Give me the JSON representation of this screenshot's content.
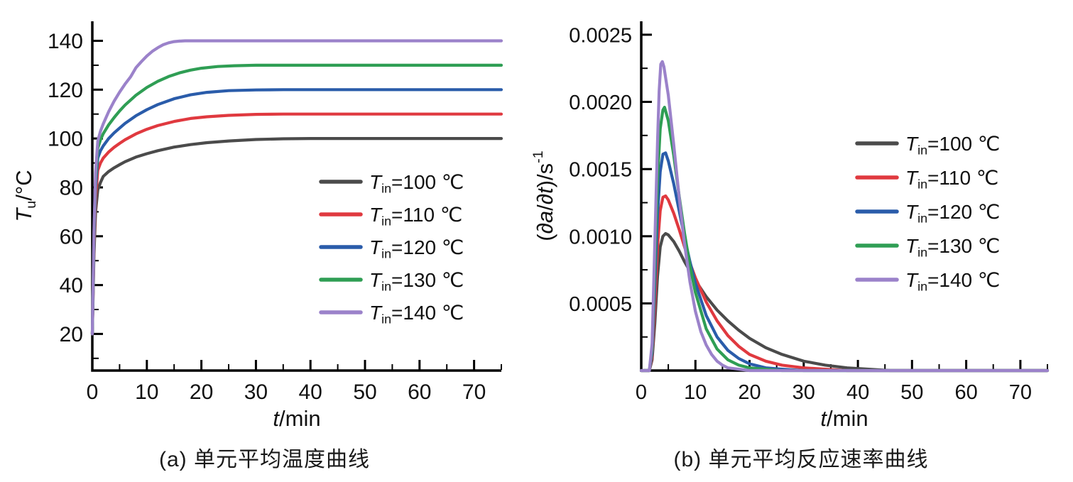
{
  "page": {
    "background": "#ffffff"
  },
  "palette": {
    "t100": "#4b4b4b",
    "t110": "#e0393f",
    "t120": "#2a5caa",
    "t130": "#2f9e54",
    "t140": "#9b82ca",
    "axis": "#000000",
    "text": "#1a1a1a"
  },
  "chart_data": [
    {
      "id": "a",
      "type": "line",
      "caption": "(a) 单元平均温度曲线",
      "xlabel_plain": "t/min",
      "ylabel_plain": "Tu/°C",
      "xlabel_parts": [
        {
          "t": "t",
          "i": true
        },
        {
          "t": "/min"
        }
      ],
      "ylabel_parts": [
        {
          "t": "T",
          "i": true
        },
        {
          "t": "u",
          "sub": true
        },
        {
          "t": "/°C"
        }
      ],
      "xlim": [
        0,
        75
      ],
      "ylim": [
        5,
        148
      ],
      "xticks": [
        0,
        10,
        20,
        30,
        40,
        50,
        60,
        70
      ],
      "xtick_labels": [
        "0",
        "10",
        "20",
        "30",
        "40",
        "50",
        "60",
        "70"
      ],
      "xminor": [
        5,
        15,
        25,
        35,
        45,
        55,
        65,
        75
      ],
      "yticks": [
        20,
        40,
        60,
        80,
        100,
        120,
        140
      ],
      "ytick_labels": [
        "20",
        "40",
        "60",
        "80",
        "100",
        "120",
        "140"
      ],
      "yminor": [
        10,
        30,
        50,
        70,
        90,
        110,
        130
      ],
      "legend": [
        {
          "label": "Tin=100 ℃",
          "color": "#4b4b4b",
          "parts": [
            {
              "t": "T",
              "i": true
            },
            {
              "t": "in",
              "sub": true
            },
            {
              "t": "=100 ℃"
            }
          ]
        },
        {
          "label": "Tin=110 ℃",
          "color": "#e0393f",
          "parts": [
            {
              "t": "T",
              "i": true
            },
            {
              "t": "in",
              "sub": true
            },
            {
              "t": "=110 ℃"
            }
          ]
        },
        {
          "label": "Tin=120 ℃",
          "color": "#2a5caa",
          "parts": [
            {
              "t": "T",
              "i": true
            },
            {
              "t": "in",
              "sub": true
            },
            {
              "t": "=120 ℃"
            }
          ]
        },
        {
          "label": "Tin=130 ℃",
          "color": "#2f9e54",
          "parts": [
            {
              "t": "T",
              "i": true
            },
            {
              "t": "in",
              "sub": true
            },
            {
              "t": "=130 ℃"
            }
          ]
        },
        {
          "label": "Tin=140 ℃",
          "color": "#9b82ca",
          "parts": [
            {
              "t": "T",
              "i": true
            },
            {
              "t": "in",
              "sub": true
            },
            {
              "t": "=140 ℃"
            }
          ]
        }
      ],
      "series": [
        {
          "name": "Tin=100 ℃",
          "color": "#4b4b4b",
          "x": [
            0,
            0.3,
            0.6,
            1,
            1.5,
            2,
            3,
            4,
            5,
            6,
            8,
            10,
            12,
            15,
            18,
            21,
            25,
            30,
            35,
            40,
            50,
            60,
            75
          ],
          "y": [
            20,
            52,
            70,
            79,
            82,
            84.5,
            86.5,
            88,
            89.3,
            90.5,
            92.4,
            93.8,
            95,
            96.5,
            97.5,
            98.3,
            99,
            99.6,
            99.9,
            100,
            100,
            100,
            100
          ]
        },
        {
          "name": "Tin=110 ℃",
          "color": "#e0393f",
          "x": [
            0,
            0.3,
            0.6,
            1,
            1.5,
            2,
            3,
            4,
            5,
            6,
            8,
            10,
            12,
            15,
            18,
            21,
            25,
            30,
            35,
            40,
            50,
            60,
            75
          ],
          "y": [
            20,
            55,
            75,
            87,
            90,
            92,
            94.5,
            96.4,
            98,
            99.5,
            101.9,
            103.8,
            105.3,
            107,
            108.2,
            108.9,
            109.5,
            109.9,
            110,
            110,
            110,
            110,
            110
          ]
        },
        {
          "name": "Tin=120 ℃",
          "color": "#2a5caa",
          "x": [
            0,
            0.3,
            0.6,
            1,
            1.5,
            2,
            3,
            4,
            5,
            6,
            8,
            10,
            12,
            15,
            18,
            21,
            25,
            30,
            35,
            40,
            50,
            60,
            75
          ],
          "y": [
            20,
            58,
            80,
            92,
            95,
            97,
            100,
            102.3,
            104.3,
            106.2,
            109.3,
            111.8,
            113.9,
            116.3,
            117.9,
            118.9,
            119.6,
            119.9,
            120,
            120,
            120,
            120,
            120
          ]
        },
        {
          "name": "Tin=130 ℃",
          "color": "#2f9e54",
          "x": [
            0,
            0.3,
            0.6,
            1,
            1.5,
            2,
            3,
            4,
            5,
            6,
            8,
            10,
            12,
            14,
            16,
            18,
            20,
            23,
            26,
            30,
            40,
            50,
            60,
            75
          ],
          "y": [
            20,
            60,
            83,
            96,
            99.5,
            102,
            105.6,
            108.6,
            111.3,
            113.7,
            117.7,
            120.9,
            123.4,
            125.4,
            126.9,
            128,
            128.8,
            129.5,
            129.8,
            130,
            130,
            130,
            130,
            130
          ]
        },
        {
          "name": "Tin=140 ℃",
          "color": "#9b82ca",
          "x": [
            0,
            0.3,
            0.6,
            1,
            1.5,
            2,
            3,
            4,
            5,
            6,
            7,
            8,
            9,
            10,
            11,
            12,
            13,
            14,
            15,
            16,
            17,
            20,
            30,
            40,
            50,
            60,
            75
          ],
          "y": [
            20,
            62,
            86,
            99,
            103,
            106,
            111,
            115.3,
            119,
            122.3,
            125.2,
            129,
            131.5,
            133.8,
            135.7,
            137.2,
            138.4,
            139.2,
            139.7,
            139.9,
            140,
            140,
            140,
            140,
            140,
            140,
            140
          ]
        }
      ]
    },
    {
      "id": "b",
      "type": "line",
      "caption": "(b) 单元平均反应速率曲线",
      "xlabel_plain": "t/min",
      "ylabel_plain": "(∂a/∂t)/s-1",
      "xlabel_parts": [
        {
          "t": "t",
          "i": true
        },
        {
          "t": "/min"
        }
      ],
      "ylabel_parts": [
        {
          "t": "("
        },
        {
          "t": "∂a",
          "i": true
        },
        {
          "t": "/"
        },
        {
          "t": "∂t",
          "i": true
        },
        {
          "t": ")/s"
        },
        {
          "t": "-1",
          "sup": true
        }
      ],
      "xlim": [
        0,
        75
      ],
      "ylim": [
        0,
        0.0026
      ],
      "xticks": [
        0,
        10,
        20,
        30,
        40,
        50,
        60,
        70
      ],
      "xtick_labels": [
        "0",
        "10",
        "20",
        "30",
        "40",
        "50",
        "60",
        "70"
      ],
      "xminor": [
        5,
        15,
        25,
        35,
        45,
        55,
        65,
        75
      ],
      "yticks": [
        0.0005,
        0.001,
        0.0015,
        0.002,
        0.0025
      ],
      "ytick_labels": [
        "0.0005",
        "0.0010",
        "0.0015",
        "0.0020",
        "0.0025"
      ],
      "yminor": [
        0.00025,
        0.00075,
        0.00125,
        0.00175,
        0.00225
      ],
      "legend": [
        {
          "label": "Tin=100 ℃",
          "color": "#4b4b4b",
          "parts": [
            {
              "t": "T",
              "i": true
            },
            {
              "t": "in",
              "sub": true
            },
            {
              "t": "=100 ℃"
            }
          ]
        },
        {
          "label": "Tin=110 ℃",
          "color": "#e0393f",
          "parts": [
            {
              "t": "T",
              "i": true
            },
            {
              "t": "in",
              "sub": true
            },
            {
              "t": "=110 ℃"
            }
          ]
        },
        {
          "label": "Tin=120 ℃",
          "color": "#2a5caa",
          "parts": [
            {
              "t": "T",
              "i": true
            },
            {
              "t": "in",
              "sub": true
            },
            {
              "t": "=120 ℃"
            }
          ]
        },
        {
          "label": "Tin=130 ℃",
          "color": "#2f9e54",
          "parts": [
            {
              "t": "T",
              "i": true
            },
            {
              "t": "in",
              "sub": true
            },
            {
              "t": "=130 ℃"
            }
          ]
        },
        {
          "label": "Tin=140 ℃",
          "color": "#9b82ca",
          "parts": [
            {
              "t": "T",
              "i": true
            },
            {
              "t": "in",
              "sub": true
            },
            {
              "t": "=140 ℃"
            }
          ]
        }
      ],
      "series": [
        {
          "name": "Tin=100 ℃",
          "color": "#4b4b4b",
          "x": [
            0,
            1.5,
            2,
            2.5,
            3,
            3.5,
            4,
            4.5,
            5,
            6,
            7,
            8,
            9,
            10,
            12,
            14,
            16,
            18,
            20,
            23,
            26,
            30,
            34,
            38,
            42,
            46,
            55,
            75
          ],
          "y": [
            0,
            0,
            8e-05,
            0.00035,
            0.0007,
            0.00092,
            0.001,
            0.00102,
            0.00101,
            0.00096,
            0.00089,
            0.00081,
            0.00074,
            0.00067,
            0.00055,
            0.00045,
            0.00037,
            0.0003,
            0.00024,
            0.00017,
            0.00012,
            7e-05,
            4e-05,
            2e-05,
            1e-05,
            0,
            0,
            0
          ]
        },
        {
          "name": "Tin=110 ℃",
          "color": "#e0393f",
          "x": [
            0,
            1.5,
            2,
            2.5,
            3,
            3.5,
            4,
            4.5,
            5,
            6,
            7,
            8,
            9,
            10,
            12,
            14,
            16,
            18,
            20,
            23,
            26,
            30,
            34,
            38,
            75
          ],
          "y": [
            0,
            0,
            0.0001,
            0.00048,
            0.00092,
            0.00119,
            0.00129,
            0.0013,
            0.00127,
            0.00117,
            0.00105,
            0.00092,
            0.0008,
            0.00069,
            0.00051,
            0.00037,
            0.00026,
            0.00018,
            0.00012,
            7e-05,
            4e-05,
            2e-05,
            1e-05,
            0,
            0
          ]
        },
        {
          "name": "Tin=120 ℃",
          "color": "#2a5caa",
          "x": [
            0,
            1.5,
            2,
            2.5,
            3,
            3.5,
            4,
            4.5,
            5,
            6,
            7,
            8,
            9,
            10,
            12,
            14,
            16,
            18,
            20,
            23,
            26,
            30,
            75
          ],
          "y": [
            0,
            0,
            0.00013,
            0.00062,
            0.00116,
            0.00148,
            0.00161,
            0.00162,
            0.00156,
            0.00139,
            0.00119,
            0.00099,
            0.00081,
            0.00065,
            0.00041,
            0.00025,
            0.00015,
            9e-05,
            5e-05,
            2e-05,
            1e-05,
            0,
            0
          ]
        },
        {
          "name": "Tin=130 ℃",
          "color": "#2f9e54",
          "x": [
            0,
            1.5,
            2,
            2.5,
            3,
            3.5,
            4,
            4.3,
            5,
            6,
            7,
            8,
            9,
            10,
            12,
            14,
            16,
            18,
            20,
            23,
            26,
            75
          ],
          "y": [
            0,
            0,
            0.00016,
            0.00078,
            0.00142,
            0.0018,
            0.00194,
            0.00196,
            0.00186,
            0.0016,
            0.0013,
            0.00102,
            0.00078,
            0.00058,
            0.00031,
            0.00016,
            8e-05,
            4e-05,
            2e-05,
            1e-05,
            0,
            0
          ]
        },
        {
          "name": "Tin=140 ℃",
          "color": "#9b82ca",
          "x": [
            0,
            1.5,
            2,
            2.5,
            3,
            3.3,
            3.6,
            3.9,
            4.2,
            5,
            6,
            7,
            8,
            9,
            10,
            11,
            12,
            13,
            14,
            15,
            16,
            18,
            20,
            75
          ],
          "y": [
            0,
            0,
            0.0002,
            0.00095,
            0.0017,
            0.00208,
            0.00228,
            0.0023,
            0.00226,
            0.00205,
            0.00168,
            0.00129,
            0.00094,
            0.00066,
            0.00044,
            0.00029,
            0.00019,
            0.00012,
            7e-05,
            4e-05,
            2e-05,
            1e-05,
            0,
            0
          ]
        }
      ]
    }
  ]
}
